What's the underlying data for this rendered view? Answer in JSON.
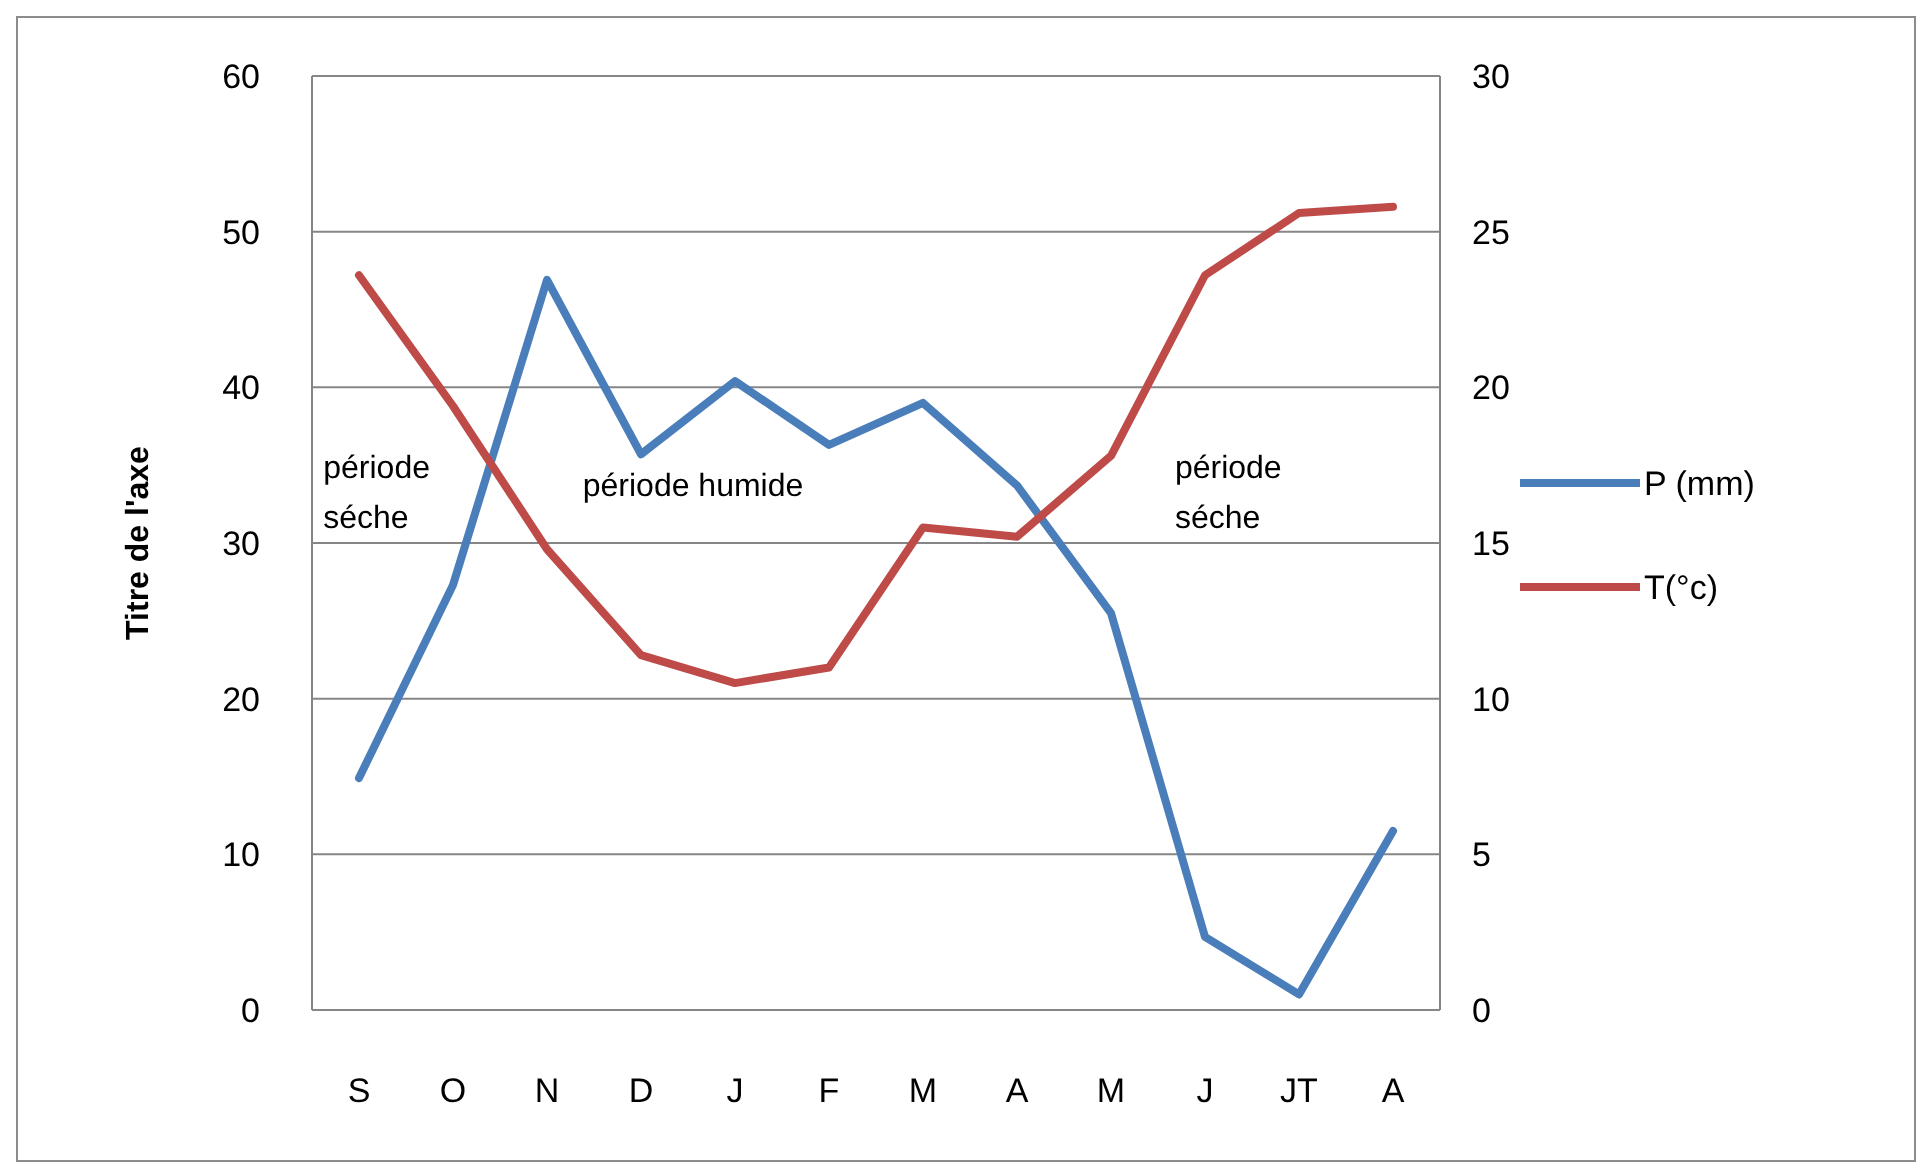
{
  "chart_data": {
    "type": "line",
    "ylabel": "Titre de l'axe",
    "categories": [
      "S",
      "O",
      "N",
      "D",
      "J",
      "F",
      "M",
      "A",
      "M",
      "J",
      "JT",
      "A"
    ],
    "series": [
      {
        "name": "P (mm)",
        "color": "#4a7ebb",
        "values": [
          14.9,
          27.3,
          46.9,
          35.7,
          40.4,
          36.3,
          39,
          33.7,
          25.5,
          4.7,
          1.0,
          11.5
        ]
      },
      {
        "name": "T(°c)",
        "color": "#be4b48",
        "axis": "y2",
        "values": [
          23.6,
          19.4,
          14.8,
          11.4,
          10.5,
          11.0,
          15.5,
          15.2,
          17.8,
          23.6,
          25.6,
          25.8
        ]
      }
    ],
    "ylim": [
      0,
      60
    ],
    "yticks": [
      0,
      10,
      20,
      30,
      40,
      50,
      60
    ],
    "y2lim": [
      0,
      30
    ],
    "y2ticks": [
      0,
      5,
      10,
      15,
      20,
      25,
      30
    ],
    "grid": "y",
    "legend": "right",
    "marker": "none",
    "line_style": "solid",
    "annotations": [
      "période séche",
      "période humide",
      "période séche"
    ]
  }
}
